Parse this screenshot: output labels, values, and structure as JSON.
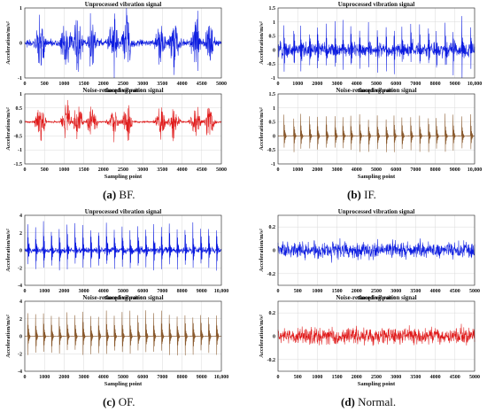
{
  "captions": [
    {
      "label": "(a)",
      "text": " BF."
    },
    {
      "label": "(b)",
      "text": " IF."
    },
    {
      "label": "(c)",
      "text": " OF."
    },
    {
      "label": "(d)",
      "text": " Normal."
    }
  ],
  "chart_data": [
    {
      "type": "line",
      "title": "Unprocessed vibration signal",
      "xlabel": "Sampling point",
      "ylabel": "Acceleration/m/s²",
      "xlim": [
        0,
        5000
      ],
      "ylim": [
        -1,
        1
      ],
      "xticks": [
        "0",
        "500",
        "1000",
        "1500",
        "2000",
        "2500",
        "3000",
        "3500",
        "4000",
        "4500",
        "5000"
      ],
      "yticks": [
        "-1",
        "0",
        "1"
      ],
      "color": "#0b1be0",
      "signal": "bursts",
      "noise": 0.1,
      "amplitude": 0.9,
      "events": [
        400,
        1050,
        1350,
        1700,
        2250,
        2600,
        3450,
        3800,
        4350,
        4700
      ]
    },
    {
      "type": "line",
      "title": "Noise-reduced vibration signal",
      "xlabel": "Sampling point",
      "ylabel": "Acceleration/m/s²",
      "xlim": [
        0,
        5000
      ],
      "ylim": [
        -1.5,
        1
      ],
      "xticks": [
        "0",
        "500",
        "1000",
        "1500",
        "2000",
        "2500",
        "3000",
        "3500",
        "4000",
        "4500",
        "5000"
      ],
      "yticks": [
        "-1.5",
        "-1",
        "-0.5",
        "0",
        "0.5",
        "1"
      ],
      "color": "#e01a1a",
      "signal": "bursts",
      "noise": 0.03,
      "amplitude": 0.75,
      "events": [
        400,
        1050,
        1350,
        1700,
        2250,
        2600,
        3450,
        3800,
        4350,
        4700
      ]
    },
    {
      "type": "line",
      "title": "Unprocessed vibration signal",
      "xlabel": "Sampling point",
      "ylabel": "Acceleration/m/s²",
      "xlim": [
        0,
        10000
      ],
      "ylim": [
        -1,
        1.5
      ],
      "xticks": [
        "0",
        "1000",
        "2000",
        "3000",
        "4000",
        "5000",
        "6000",
        "7000",
        "8000",
        "9000",
        "10,000"
      ],
      "yticks": [
        "-1",
        "-0.5",
        "0",
        "0.5",
        "1",
        "1.5"
      ],
      "color": "#0b1be0",
      "signal": "spikes",
      "noise": 0.25,
      "amplitude": 1.0,
      "events": [
        300,
        800,
        1150,
        1600,
        2000,
        2450,
        2900,
        3300,
        3700,
        4150,
        4600,
        5050,
        5500,
        5900,
        6300,
        6750,
        7200,
        7650,
        8050,
        8500,
        8900,
        9350,
        9800
      ]
    },
    {
      "type": "line",
      "title": "Noise-reduced vibration signal",
      "xlabel": "Sampling point",
      "ylabel": "Acceleration/m/s²",
      "xlim": [
        0,
        10000
      ],
      "ylim": [
        -1,
        1.5
      ],
      "xticks": [
        "0",
        "1000",
        "2000",
        "3000",
        "4000",
        "5000",
        "6000",
        "7000",
        "8000",
        "9000",
        "10,000"
      ],
      "yticks": [
        "-1",
        "-0.5",
        "0",
        "0.5",
        "1",
        "1.5"
      ],
      "color": "#8a5a2e",
      "signal": "spikes",
      "noise": 0.01,
      "amplitude": 0.8,
      "events": [
        300,
        800,
        1150,
        1600,
        2000,
        2450,
        2900,
        3300,
        3700,
        4150,
        4600,
        5050,
        5500,
        5900,
        6300,
        6750,
        7200,
        7650,
        8050,
        8500,
        8900,
        9350,
        9800
      ]
    },
    {
      "type": "line",
      "title": "Unprocessed vibration signal",
      "xlabel": "Sampling point",
      "ylabel": "Acceleration/m/s²",
      "xlim": [
        0,
        10000
      ],
      "ylim": [
        -4,
        4
      ],
      "xticks": [
        "0",
        "1000",
        "2000",
        "3000",
        "4000",
        "5000",
        "6000",
        "7000",
        "8000",
        "9000",
        "10,000"
      ],
      "yticks": [
        "-4",
        "-2",
        "0",
        "2",
        "4"
      ],
      "color": "#0b1be0",
      "signal": "spikes",
      "noise": 0.35,
      "amplitude": 3.2,
      "events": [
        150,
        550,
        950,
        1350,
        1750,
        2150,
        2550,
        2950,
        3350,
        3750,
        4150,
        4550,
        4950,
        5350,
        5750,
        6150,
        6550,
        6950,
        7350,
        7750,
        8150,
        8550,
        8950,
        9350,
        9750
      ]
    },
    {
      "type": "line",
      "title": "Noise-reduced vibration signal",
      "xlabel": "Sampling point",
      "ylabel": "Acceleration/m/s²",
      "xlim": [
        0,
        10000
      ],
      "ylim": [
        -4,
        4
      ],
      "xticks": [
        "0",
        "1000",
        "2000",
        "3000",
        "4000",
        "5000",
        "6000",
        "7000",
        "8000",
        "9000",
        "10,000"
      ],
      "yticks": [
        "-4",
        "-2",
        "0",
        "2",
        "4"
      ],
      "color": "#8a5a2e",
      "signal": "spikes",
      "noise": 0.03,
      "amplitude": 3.0,
      "events": [
        150,
        550,
        950,
        1350,
        1750,
        2150,
        2550,
        2950,
        3350,
        3750,
        4150,
        4550,
        4950,
        5350,
        5750,
        6150,
        6550,
        6950,
        7350,
        7750,
        8150,
        8550,
        8950,
        9350,
        9750
      ]
    },
    {
      "type": "line",
      "title": "Unprocessed vibration signal",
      "xlabel": "Sampling point",
      "ylabel": "Acceleration/m/s²",
      "xlim": [
        0,
        5000
      ],
      "ylim": [
        -0.3,
        0.3
      ],
      "xticks": [
        "0",
        "500",
        "1000",
        "1500",
        "2000",
        "2500",
        "3000",
        "3500",
        "4000",
        "4500",
        "5000"
      ],
      "yticks": [
        "-0.2",
        "0",
        "0.2"
      ],
      "color": "#0b1be0",
      "signal": "noise",
      "noise": 0.07,
      "amplitude": 0.0,
      "events": []
    },
    {
      "type": "line",
      "title": "Noise-reduced vibration signal",
      "xlabel": "Sampling point",
      "ylabel": "Acceleration/m/s²",
      "xlim": [
        0,
        5000
      ],
      "ylim": [
        -0.3,
        0.3
      ],
      "xticks": [
        "0",
        "500",
        "1000",
        "1500",
        "2000",
        "2500",
        "3000",
        "3500",
        "4000",
        "4500",
        "5000"
      ],
      "yticks": [
        "-0.2",
        "0",
        "0.2"
      ],
      "color": "#e01a1a",
      "signal": "noise",
      "noise": 0.07,
      "amplitude": 0.0,
      "events": []
    }
  ]
}
